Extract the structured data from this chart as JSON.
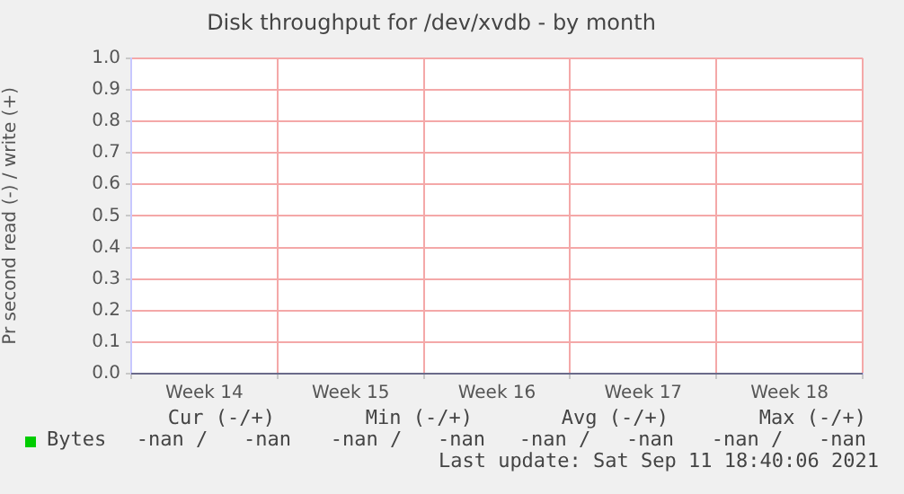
{
  "chart_data": {
    "type": "line",
    "title": "Disk throughput for /dev/xvdb - by month",
    "ylabel": "Pr second read (-) / write (+)",
    "categories": [
      "Week 14",
      "Week 15",
      "Week 16",
      "Week 17",
      "Week 18"
    ],
    "series": [
      {
        "name": "Bytes",
        "color": "#00cc00",
        "values": [
          null,
          null,
          null,
          null,
          null
        ]
      }
    ],
    "ylim": [
      0,
      1
    ],
    "yticks": [
      {
        "value": 0,
        "label": "0.0"
      },
      0.1,
      0.2,
      0.3,
      0.4,
      0.5,
      0.6,
      0.7,
      0.8,
      0.9,
      {
        "value": 1,
        "label": "1.0"
      }
    ],
    "ref_lines": [
      {
        "axis": "y",
        "value": 0,
        "color": "#6a6a8a"
      }
    ],
    "grid": true,
    "legend": "bottom left",
    "annotations": [
      "Cur (-/+)",
      "Min (-/+)",
      "Avg (-/+)",
      "Max (-/+)",
      "-nan /   -nan",
      "-nan /   -nan",
      "-nan /   -nan",
      "-nan /   -nan",
      "Last update: Sat Sep 11 18:40:06 2021"
    ]
  }
}
